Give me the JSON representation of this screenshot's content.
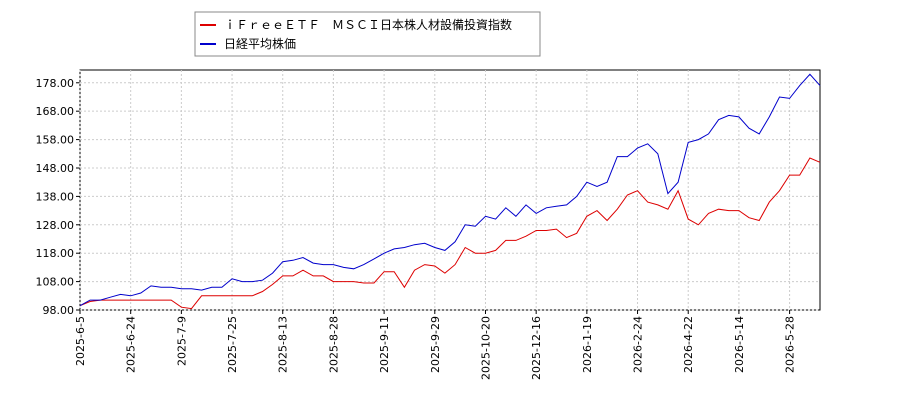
{
  "chart_data": {
    "type": "line",
    "categories": [
      "2025-6-5",
      null,
      null,
      null,
      null,
      "2025-6-24",
      null,
      null,
      null,
      null,
      "2025-7-9",
      null,
      null,
      null,
      null,
      "2025-7-25",
      null,
      null,
      null,
      null,
      "2025-8-13",
      null,
      null,
      null,
      null,
      "2025-8-28",
      null,
      null,
      null,
      null,
      "2025-9-11",
      null,
      null,
      null,
      null,
      "2025-9-29",
      null,
      null,
      null,
      null,
      "2025-10-20",
      null,
      null,
      null,
      null,
      "2025-12-16",
      null,
      null,
      null,
      null,
      "2026-1-19",
      null,
      null,
      null,
      null,
      "2026-2-24",
      null,
      null,
      null,
      null,
      "2026-4-22",
      null,
      null,
      null,
      null,
      "2026-5-14",
      null,
      null,
      null,
      null,
      "2026-5-28",
      null,
      null,
      null
    ],
    "series": [
      {
        "name": "ｉＦｒｅｅＥＴＦ　ＭＳＣＩ日本株人材設備投資指数",
        "color": "#dd0000",
        "values": [
          99.5,
          101,
          101.5,
          101.5,
          101.5,
          101.5,
          101.5,
          101.5,
          101.5,
          101.5,
          99,
          98.5,
          103,
          103,
          103,
          103,
          103,
          103,
          104.5,
          107,
          110,
          110,
          112,
          110,
          110,
          108,
          108,
          108,
          107.5,
          107.5,
          111.5,
          111.5,
          106,
          112,
          114,
          113.5,
          111,
          114,
          120,
          118,
          118,
          119,
          122.5,
          122.5,
          124,
          126,
          126,
          126.5,
          123.5,
          125,
          131,
          133,
          129.5,
          133.5,
          138.5,
          140,
          136,
          135,
          133.5,
          140,
          130,
          128,
          132,
          133.5,
          133,
          133,
          130.5,
          129.5,
          136,
          140,
          145.5,
          145.5,
          151.5,
          150
        ]
      },
      {
        "name": "日経平均株価",
        "color": "#0000cc",
        "values": [
          99.5,
          101.5,
          101.5,
          102.5,
          103.5,
          103,
          104,
          106.5,
          106,
          106,
          105.5,
          105.5,
          105,
          106,
          106,
          109,
          108,
          108,
          108.5,
          111,
          115,
          115.5,
          116.5,
          114.5,
          114,
          114,
          113,
          112.5,
          114,
          116,
          118,
          119.5,
          120,
          121,
          121.5,
          120,
          119,
          122,
          128,
          127.5,
          131,
          130,
          134,
          131,
          135,
          132,
          134,
          134.5,
          135,
          138,
          143,
          141.5,
          143,
          152,
          152,
          155,
          156.5,
          153,
          139,
          143,
          157,
          158,
          160,
          165,
          166.5,
          166,
          162,
          160,
          166,
          173,
          172.5,
          177,
          181,
          177
        ]
      }
    ],
    "ylim": [
      98,
      182.5
    ],
    "yticks": [
      {
        "value": 98,
        "label": "98.00"
      },
      {
        "value": 108,
        "label": "108.00"
      },
      {
        "value": 118,
        "label": "118.00"
      },
      {
        "value": 128,
        "label": "128.00"
      },
      {
        "value": 138,
        "label": "138.00"
      },
      {
        "value": 148,
        "label": "148.00"
      },
      {
        "value": 158,
        "label": "158.00"
      },
      {
        "value": 168,
        "label": "168.00"
      },
      {
        "value": 178,
        "label": "178.00"
      }
    ],
    "grid": true
  }
}
